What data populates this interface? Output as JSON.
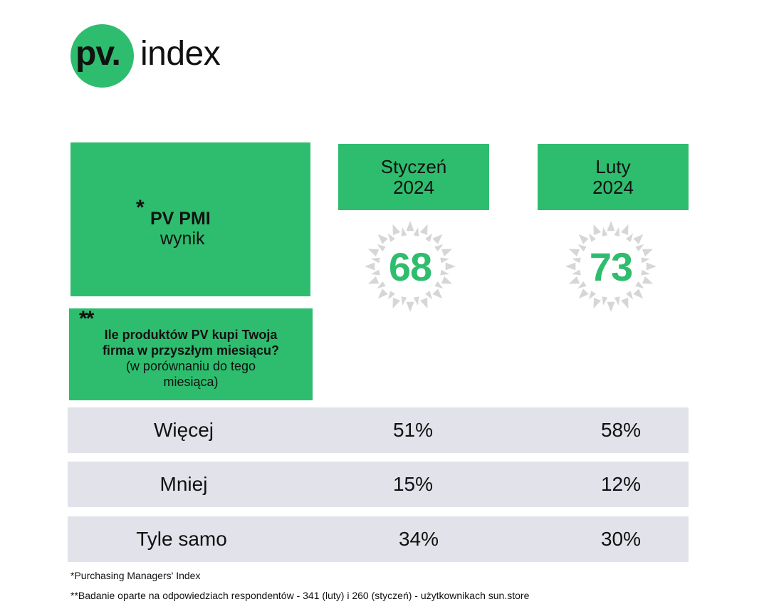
{
  "logo": {
    "prefix": "pv.",
    "suffix": "index"
  },
  "pmi": {
    "star": "*",
    "title": "PV PMI",
    "subtitle": "wynik"
  },
  "question": {
    "stars": "**",
    "bold_line1": "Ile produktów PV kupi Twoja",
    "bold_line2": "firma w przyszłym miesiącu?",
    "normal_line1": "(w porównaniu do tego",
    "normal_line2": "miesiąca)"
  },
  "columns": [
    {
      "month": "Styczeń",
      "year": "2024",
      "score": "68"
    },
    {
      "month": "Luty",
      "year": "2024",
      "score": "73"
    }
  ],
  "rows": [
    {
      "label": "Więcej",
      "values": [
        "51%",
        "58%"
      ]
    },
    {
      "label": "Mniej",
      "values": [
        "15%",
        "12%"
      ]
    },
    {
      "label": "Tyle samo",
      "values": [
        "34%",
        "30%"
      ]
    }
  ],
  "footnotes": [
    "*Purchasing Managers' Index",
    "**Badanie oparte na odpowiedziach respondentów - 341 (luty) i 260 (styczeń) - użytkownikach sun.store"
  ],
  "colors": {
    "accent": "#2ebd6e",
    "row_bg": "#e2e2ea",
    "badge_gray": "#d6d6d6"
  }
}
